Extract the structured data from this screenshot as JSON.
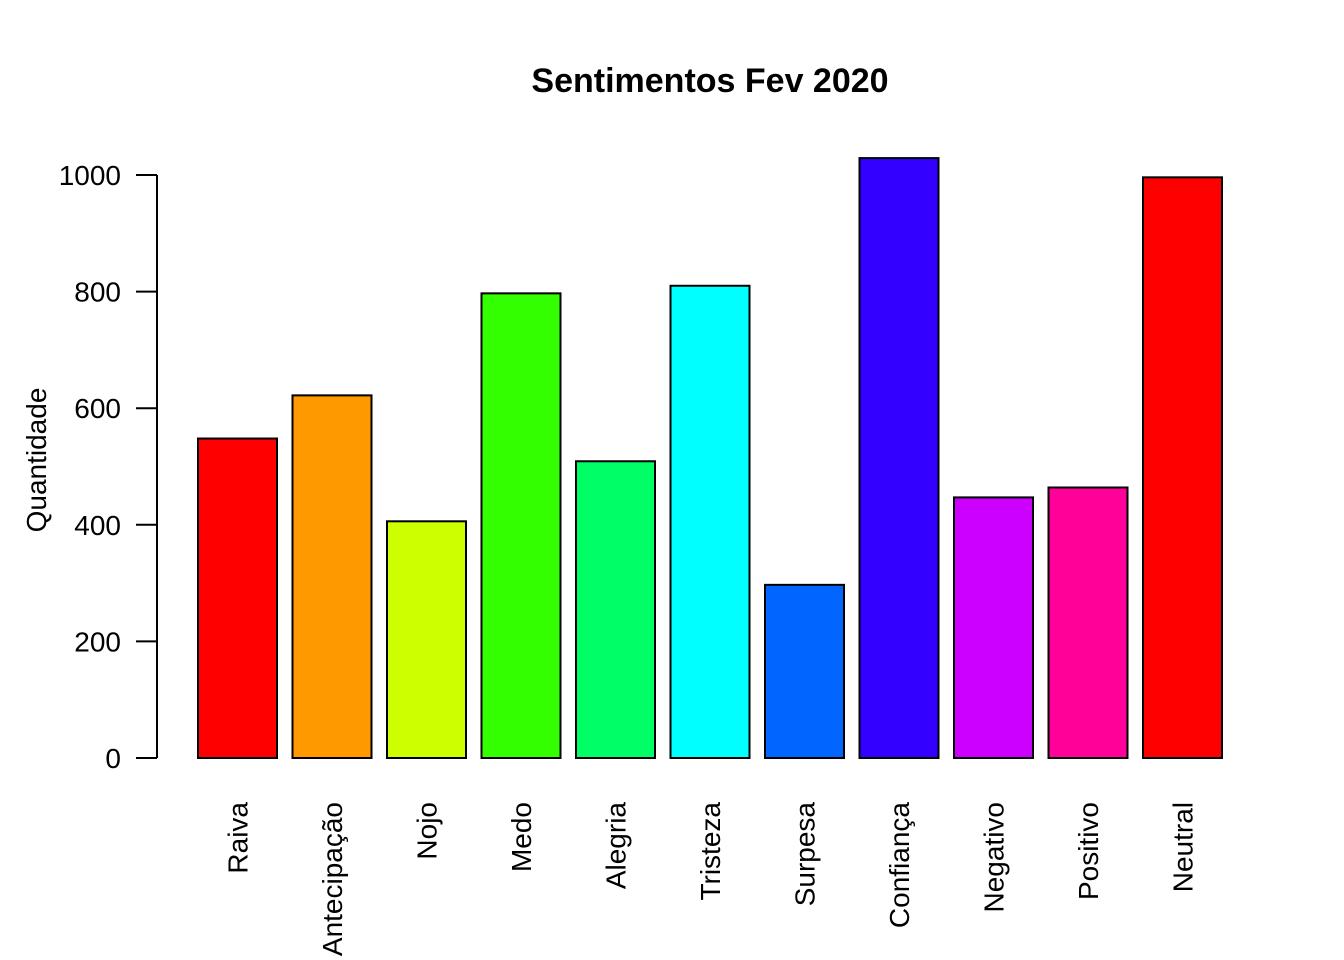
{
  "chart_data": {
    "type": "bar",
    "title": "Sentimentos Fev 2020",
    "xlabel": "",
    "ylabel": "Quantidade",
    "ylim": [
      0,
      1000
    ],
    "yticks": [
      "0",
      "200",
      "400",
      "600",
      "800",
      "1000"
    ],
    "categories": [
      "Raiva",
      "Antecipação",
      "Nojo",
      "Medo",
      "Alegria",
      "Tristeza",
      "Surpesa",
      "Confiança",
      "Negativo",
      "Positivo",
      "Neutral"
    ],
    "values": [
      548,
      622,
      406,
      797,
      509,
      810,
      297,
      1029,
      447,
      464,
      996
    ],
    "colors": [
      "#FF0000",
      "#FF9900",
      "#CCFF00",
      "#33FF00",
      "#00FF66",
      "#00FFFF",
      "#0066FF",
      "#3300FF",
      "#CC00FF",
      "#FF0099",
      "#FF0000"
    ],
    "grid": false,
    "legend": "none"
  }
}
